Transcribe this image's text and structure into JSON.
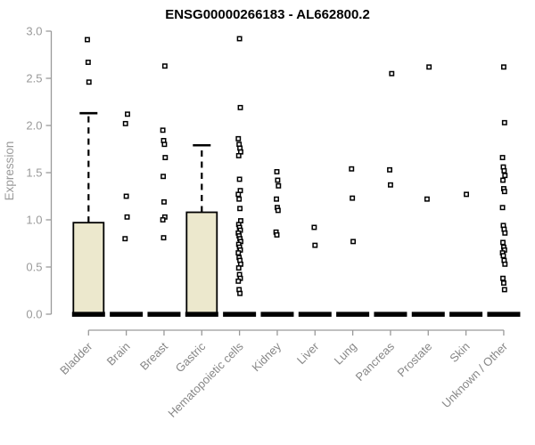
{
  "chart_data": {
    "type": "boxplot",
    "title": "ENSG00000266183 - AL662800.2",
    "ylabel": "Expression",
    "ylim": [
      0,
      3
    ],
    "grid": false,
    "legend": "none",
    "yticks": [
      0,
      0.5,
      1,
      1.5,
      2,
      2.5,
      3
    ],
    "ytick_labels": [
      "0.0",
      "0.5",
      "1.0",
      "1.5",
      "2.0",
      "2.5",
      "3.0"
    ],
    "categories": [
      "Bladder",
      "Brain",
      "Breast",
      "Gastric",
      "Hematopoietic cells",
      "Kidney",
      "Liver",
      "Lung",
      "Pancreas",
      "Prostate",
      "Skin",
      "Unknown / Other"
    ],
    "boxes": [
      {
        "category": "Bladder",
        "median": 0,
        "q1": 0,
        "q3": 0.97,
        "whisker_low": 0,
        "whisker_high": 2.13,
        "outliers": [
          2.91,
          2.67,
          2.46
        ]
      },
      {
        "category": "Brain",
        "median": 0,
        "q1": 0,
        "q3": 0,
        "whisker_low": 0,
        "whisker_high": 0,
        "outliers": [
          2.12,
          2.02,
          1.25,
          1.03,
          0.8
        ]
      },
      {
        "category": "Breast",
        "median": 0,
        "q1": 0,
        "q3": 0,
        "whisker_low": 0,
        "whisker_high": 0,
        "outliers": [
          2.63,
          1.95,
          1.84,
          1.8,
          1.66,
          1.46,
          1.19,
          1.03,
          1.0,
          0.81
        ]
      },
      {
        "category": "Gastric",
        "median": 0,
        "q1": 0,
        "q3": 1.08,
        "whisker_low": 0,
        "whisker_high": 1.79,
        "outliers": []
      },
      {
        "category": "Hematopoietic cells",
        "median": 0,
        "q1": 0,
        "q3": 0,
        "whisker_low": 0,
        "whisker_high": 0,
        "outliers": [
          2.92,
          2.19,
          1.86,
          1.8,
          1.76,
          1.72,
          1.68,
          1.43,
          1.31,
          1.27,
          1.22,
          1.12,
          0.99,
          0.95,
          0.92,
          0.89,
          0.86,
          0.83,
          0.8,
          0.77,
          0.74,
          0.71,
          0.68,
          0.65,
          0.6,
          0.57,
          0.53,
          0.49,
          0.42,
          0.38,
          0.35,
          0.26,
          0.22
        ]
      },
      {
        "category": "Kidney",
        "median": 0,
        "q1": 0,
        "q3": 0,
        "whisker_low": 0,
        "whisker_high": 0,
        "outliers": [
          1.51,
          1.42,
          1.36,
          1.22,
          1.13,
          1.1,
          0.87,
          0.84
        ]
      },
      {
        "category": "Liver",
        "median": 0,
        "q1": 0,
        "q3": 0,
        "whisker_low": 0,
        "whisker_high": 0,
        "outliers": [
          0.92,
          0.73
        ]
      },
      {
        "category": "Lung",
        "median": 0,
        "q1": 0,
        "q3": 0,
        "whisker_low": 0,
        "whisker_high": 0,
        "outliers": [
          1.54,
          1.23,
          0.77
        ]
      },
      {
        "category": "Pancreas",
        "median": 0,
        "q1": 0,
        "q3": 0,
        "whisker_low": 0,
        "whisker_high": 0,
        "outliers": [
          2.55,
          1.53,
          1.37
        ]
      },
      {
        "category": "Prostate",
        "median": 0,
        "q1": 0,
        "q3": 0,
        "whisker_low": 0,
        "whisker_high": 0,
        "outliers": [
          2.62,
          1.22
        ]
      },
      {
        "category": "Skin",
        "median": 0,
        "q1": 0,
        "q3": 0,
        "whisker_low": 0,
        "whisker_high": 0,
        "outliers": [
          1.27
        ]
      },
      {
        "category": "Unknown / Other",
        "median": 0,
        "q1": 0,
        "q3": 0,
        "whisker_low": 0,
        "whisker_high": 0,
        "outliers": [
          2.62,
          2.03,
          1.66,
          1.56,
          1.52,
          1.47,
          1.42,
          1.33,
          1.3,
          1.13,
          0.94,
          0.9,
          0.86,
          0.76,
          0.71,
          0.68,
          0.65,
          0.62,
          0.57,
          0.53,
          0.38,
          0.33,
          0.26
        ]
      }
    ],
    "colors": {
      "box_fill": "#ece8cd",
      "box_stroke": "#000000",
      "whisker": "#000000",
      "zero_bar": "#000000",
      "marker_stroke": "#000000",
      "marker_fill": "#ffffff",
      "axis": "#9a9a9a",
      "tick_label": "#9a9a9a",
      "category_label": "#878787",
      "title": "#000000"
    }
  }
}
